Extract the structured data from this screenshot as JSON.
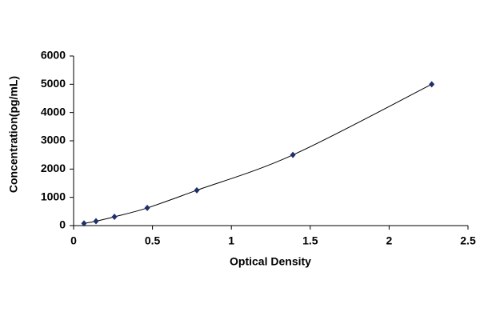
{
  "chart_data": {
    "type": "scatter",
    "x_label": "Optical Density",
    "y_label": "Concentration(pg/mL)",
    "series": [
      {
        "x": [
          0.066,
          0.142,
          0.259,
          0.467,
          0.781,
          1.39,
          2.27
        ],
        "values": [
          78,
          156,
          312,
          625,
          1250,
          2500,
          5000
        ],
        "color": "#1f2f6b",
        "line_color": "#000000"
      }
    ],
    "xlim": [
      0,
      2.5
    ],
    "xticks": [
      0,
      0.5,
      1,
      1.5,
      2,
      2.5
    ],
    "ylim": [
      0,
      6000
    ],
    "yticks": [
      0,
      1000,
      2000,
      3000,
      4000,
      5000,
      6000
    ],
    "grid": false
  }
}
